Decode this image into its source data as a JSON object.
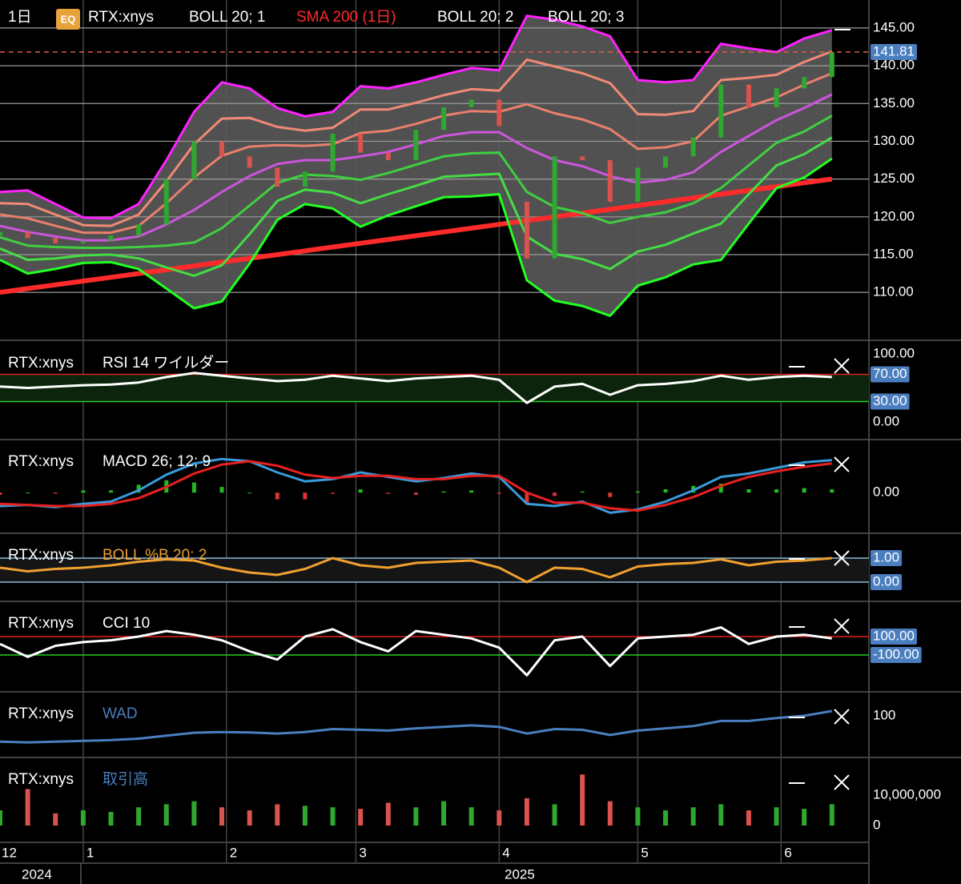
{
  "chart_data": [
    {
      "type": "candlestick",
      "interval": "1日",
      "badge": "EQ",
      "title": "RTX:xnys",
      "x": [
        13,
        19,
        25,
        31,
        37,
        43,
        49,
        55,
        61,
        67,
        73,
        79,
        85,
        91,
        97,
        103,
        109,
        115,
        121,
        127,
        133,
        139,
        145,
        151,
        157,
        163,
        169,
        175,
        181,
        187,
        193
      ],
      "xlim": [
        13,
        201
      ],
      "xticks": [
        {
          "value": 31,
          "label": "1"
        },
        {
          "value": 62,
          "label": "2"
        },
        {
          "value": 90,
          "label": "3"
        },
        {
          "value": 121,
          "label": "4"
        },
        {
          "value": 151,
          "label": "5"
        },
        {
          "value": 182,
          "label": "6"
        }
      ],
      "x_start_label": "12",
      "years": [
        "2024",
        "2025"
      ],
      "ylim": [
        104.4,
        148.7
      ],
      "yticks": [
        {
          "value": 110,
          "label": "110.00"
        },
        {
          "value": 115,
          "label": "115.00"
        },
        {
          "value": 120,
          "label": "120.00"
        },
        {
          "value": 125,
          "label": "125.00"
        },
        {
          "value": 130,
          "label": "130.00"
        },
        {
          "value": 135,
          "label": "135.00"
        },
        {
          "value": 140,
          "label": "140.00"
        },
        {
          "value": 145,
          "label": "145.00"
        }
      ],
      "grid": true,
      "open": [
        117.5,
        118.0,
        117.2,
        116.5,
        116.8,
        117.5,
        119.0,
        125.0,
        130.0,
        128.0,
        126.5,
        124.0,
        126.0,
        131.0,
        128.5,
        127.5,
        131.5,
        134.5,
        135.5,
        122.0,
        114.5,
        128.0,
        127.5,
        122.0,
        126.5,
        128.0,
        130.5,
        137.5,
        134.5,
        137.0,
        138.5
      ],
      "close": [
        118.0,
        117.2,
        116.5,
        116.8,
        117.5,
        119.0,
        125.0,
        130.0,
        128.0,
        126.5,
        124.0,
        126.0,
        131.0,
        128.5,
        127.5,
        131.5,
        134.5,
        135.5,
        132.0,
        114.5,
        128.0,
        127.5,
        122.0,
        126.5,
        128.0,
        130.5,
        137.5,
        134.5,
        137.0,
        138.5,
        141.8
      ],
      "up_color": "#2fa82f",
      "down_color": "#d9534f",
      "last_price": 141.81,
      "last_price_color": "#4a7ebf",
      "last_price_line_color": "#e05a4a",
      "series": [
        {
          "name": "BOLL 20; 1",
          "label_color": "#ffffff",
          "upper_color": "#e8806c",
          "middle_color": "#cc55dd",
          "lower_color": "#3fcf3f",
          "upper": [
            120.3,
            119.8,
            118.8,
            117.9,
            117.9,
            118.8,
            121.8,
            125.2,
            128.1,
            129.3,
            129.5,
            129.4,
            129.6,
            131.1,
            131.4,
            132.3,
            133.4,
            134.0,
            133.9,
            134.9,
            133.7,
            132.9,
            131.6,
            129.0,
            129.2,
            130.0,
            133.4,
            134.6,
            135.8,
            137.5,
            139.0
          ],
          "middle": [
            118.8,
            118.0,
            117.4,
            116.9,
            116.9,
            117.4,
            119.0,
            120.9,
            123.3,
            125.4,
            127.0,
            127.5,
            127.5,
            128.0,
            128.6,
            129.6,
            130.7,
            131.2,
            131.2,
            129.1,
            127.5,
            126.7,
            125.4,
            124.5,
            124.9,
            125.9,
            128.6,
            130.7,
            132.8,
            134.4,
            136.2
          ],
          "lower": [
            117.3,
            116.2,
            116.0,
            115.9,
            115.9,
            116.0,
            116.2,
            116.6,
            118.5,
            121.5,
            124.5,
            125.6,
            125.4,
            124.9,
            125.8,
            126.9,
            128.0,
            128.4,
            128.5,
            123.3,
            121.3,
            120.5,
            119.2,
            120.0,
            120.6,
            121.8,
            123.8,
            126.8,
            129.8,
            131.3,
            133.4
          ]
        },
        {
          "name": "SMA 200 (1日)",
          "label_color": "#ff2a2a",
          "color": "#ff2a2a",
          "values": [
            110.0,
            110.5,
            111.0,
            111.5,
            112.0,
            112.5,
            113.0,
            113.5,
            114.0,
            114.5,
            115.0,
            115.5,
            116.0,
            116.5,
            117.0,
            117.5,
            118.0,
            118.5,
            119.0,
            119.5,
            120.0,
            120.5,
            121.0,
            121.5,
            122.0,
            122.5,
            123.0,
            123.5,
            124.0,
            124.5,
            125.0
          ]
        },
        {
          "name": "BOLL 20; 2",
          "label_color": "#ffffff",
          "upper_color": "#f08a76",
          "lower_color": "#44dd44",
          "upper": [
            121.8,
            121.7,
            120.3,
            118.9,
            118.8,
            120.3,
            124.7,
            129.6,
            133.0,
            133.1,
            131.9,
            131.4,
            131.8,
            134.2,
            134.2,
            135.1,
            136.1,
            136.9,
            136.7,
            140.8,
            139.9,
            139.0,
            137.7,
            133.6,
            133.5,
            134.0,
            138.1,
            138.4,
            138.8,
            140.5,
            141.9
          ],
          "lower": [
            115.8,
            114.3,
            114.5,
            114.9,
            115.0,
            114.5,
            113.3,
            112.2,
            113.6,
            117.7,
            122.1,
            123.6,
            123.2,
            121.8,
            123.0,
            124.1,
            125.3,
            125.5,
            125.7,
            117.4,
            115.1,
            114.4,
            113.1,
            115.4,
            116.3,
            117.8,
            119.1,
            123.0,
            126.8,
            128.3,
            130.5
          ]
        },
        {
          "name": "BOLL 20; 3",
          "label_color": "#ffffff",
          "upper_color": "#ff22ff",
          "lower_color": "#22ff22",
          "fill": "#5a5a5a",
          "upper": [
            123.3,
            123.5,
            121.7,
            119.9,
            119.8,
            121.7,
            127.5,
            133.9,
            137.8,
            137.0,
            134.4,
            133.3,
            133.9,
            137.3,
            137.0,
            137.8,
            138.8,
            139.7,
            139.4,
            146.6,
            146.1,
            145.2,
            143.9,
            138.1,
            137.8,
            138.1,
            142.9,
            142.3,
            141.8,
            143.6,
            144.7
          ],
          "lower": [
            114.3,
            112.5,
            113.1,
            113.9,
            114.0,
            113.1,
            110.5,
            107.9,
            108.8,
            113.8,
            119.6,
            121.7,
            121.1,
            118.7,
            120.2,
            121.4,
            122.6,
            122.7,
            123.0,
            111.6,
            108.9,
            108.2,
            106.9,
            110.9,
            112.0,
            113.7,
            114.3,
            119.1,
            123.8,
            125.2,
            127.7
          ]
        }
      ]
    },
    {
      "type": "line",
      "title": "RTX:xnys",
      "indicator": "RSI 14 ワイルダー",
      "indicator_color": "#ffffff",
      "ylim": [
        -18.8,
        111.8
      ],
      "yticks": [
        {
          "value": 100,
          "label": "100.00"
        },
        {
          "value": 0,
          "label": "0.00"
        }
      ],
      "levels": [
        {
          "value": 70,
          "label": "70.00",
          "color": "#e02020"
        },
        {
          "value": 30,
          "label": "30.00",
          "color": "#22cc22"
        }
      ],
      "band_color": "#0b240b",
      "series": [
        {
          "color": "#ffffff",
          "values": [
            52,
            50,
            52,
            54,
            55,
            58,
            66,
            72,
            68,
            64,
            60,
            62,
            68,
            64,
            60,
            64,
            66,
            68,
            62,
            28,
            52,
            56,
            40,
            54,
            56,
            60,
            68,
            62,
            66,
            68,
            66
          ]
        }
      ]
    },
    {
      "type": "macd",
      "title": "RTX:xnys",
      "indicator": "MACD 26; 12; 9",
      "indicator_color": "#ffffff",
      "ylim": [
        -3.2,
        4.3
      ],
      "yticks": [
        {
          "value": 0,
          "label": "0.00"
        }
      ],
      "series": [
        {
          "color": "#3a9ad9",
          "values": [
            -1.2,
            -1.1,
            -1.3,
            -1.0,
            -0.8,
            0.2,
            1.6,
            2.6,
            3.0,
            2.8,
            1.8,
            1.0,
            1.2,
            1.8,
            1.4,
            1.0,
            1.3,
            1.7,
            1.4,
            -1.0,
            -1.2,
            -0.8,
            -1.8,
            -1.5,
            -0.8,
            0.2,
            1.4,
            1.7,
            2.2,
            2.7,
            2.9
          ]
        },
        {
          "color": "#e82020",
          "values": [
            -1.0,
            -1.1,
            -1.2,
            -1.2,
            -1.0,
            -0.5,
            0.5,
            1.7,
            2.5,
            2.8,
            2.4,
            1.6,
            1.3,
            1.5,
            1.5,
            1.2,
            1.2,
            1.5,
            1.5,
            0.0,
            -0.9,
            -0.9,
            -1.4,
            -1.6,
            -1.1,
            -0.4,
            0.6,
            1.4,
            1.9,
            2.3,
            2.6
          ]
        }
      ],
      "histogram": [
        -0.2,
        0,
        -0.1,
        0.2,
        0.2,
        0.7,
        1.1,
        0.9,
        0.5,
        0,
        -0.6,
        -0.6,
        -0.1,
        0.3,
        -0.1,
        -0.2,
        0.1,
        0.2,
        -0.1,
        -1.0,
        -0.3,
        0.1,
        -0.4,
        0.1,
        0.3,
        0.6,
        0.8,
        0.3,
        0.3,
        0.4,
        0.3
      ],
      "histogram_colors": [
        "#22bb22",
        "#dd3333"
      ]
    },
    {
      "type": "line",
      "title": "RTX:xnys",
      "indicator": "BOLL %B 20; 2",
      "indicator_color": "#f0a030",
      "ylim": [
        -0.6,
        1.833
      ],
      "yticks": [],
      "levels": [
        {
          "value": 1,
          "label": "1.00",
          "color": "#8ab8d8"
        },
        {
          "value": 0,
          "label": "0.00",
          "color": "#8ab8d8"
        }
      ],
      "band_color": "#151515",
      "series": [
        {
          "color": "#f0a030",
          "values": [
            0.6,
            0.45,
            0.55,
            0.6,
            0.7,
            0.85,
            0.95,
            0.9,
            0.6,
            0.4,
            0.3,
            0.55,
            1.0,
            0.7,
            0.6,
            0.8,
            0.85,
            0.9,
            0.6,
            0.0,
            0.6,
            0.55,
            0.2,
            0.65,
            0.75,
            0.8,
            0.95,
            0.7,
            0.85,
            0.9,
            1.0
          ]
        }
      ]
    },
    {
      "type": "line",
      "title": "RTX:xnys",
      "indicator": "CCI 10",
      "indicator_color": "#ffffff",
      "ylim": [
        -448,
        430
      ],
      "yticks": [],
      "levels": [
        {
          "value": 100,
          "label": "100.00",
          "color": "#e02020"
        },
        {
          "value": -100,
          "label": "-100.00",
          "color": "#22cc22"
        }
      ],
      "series": [
        {
          "color": "#ffffff",
          "values": [
            20,
            -120,
            0,
            40,
            60,
            100,
            160,
            120,
            60,
            -60,
            -150,
            100,
            180,
            40,
            -60,
            160,
            120,
            80,
            -20,
            -320,
            60,
            100,
            -220,
            80,
            100,
            120,
            200,
            20,
            100,
            120,
            80
          ]
        }
      ]
    },
    {
      "type": "line",
      "title": "RTX:xnys",
      "indicator": "WAD",
      "indicator_color": "#4a7ebf",
      "ylim": [
        0,
        152
      ],
      "yticks": [
        100
      ],
      "series": [
        {
          "color": "#4a7ebf",
          "values": [
            30,
            28,
            30,
            32,
            34,
            38,
            46,
            54,
            56,
            55,
            52,
            56,
            64,
            62,
            60,
            66,
            70,
            74,
            70,
            52,
            64,
            62,
            48,
            60,
            66,
            72,
            86,
            86,
            94,
            100,
            113
          ]
        }
      ]
    },
    {
      "type": "volume",
      "title": "RTX:xnys",
      "indicator": "取引高",
      "indicator_color": "#4a7ebf",
      "ylim": [
        -5000000,
        20800000
      ],
      "yticks": [
        {
          "value": 10000000,
          "label": "10,000,000"
        },
        0
      ],
      "values": [
        5000000,
        12000000,
        4000000,
        5000000,
        4500000,
        6000000,
        7000000,
        8000000,
        6000000,
        5000000,
        7000000,
        6500000,
        6000000,
        5500000,
        7500000,
        6000000,
        8000000,
        6000000,
        5000000,
        9000000,
        7000000,
        16800000,
        8000000,
        6000000,
        5000000,
        6000000,
        7000000,
        5000000,
        6000000,
        5500000,
        7000000
      ]
    }
  ]
}
